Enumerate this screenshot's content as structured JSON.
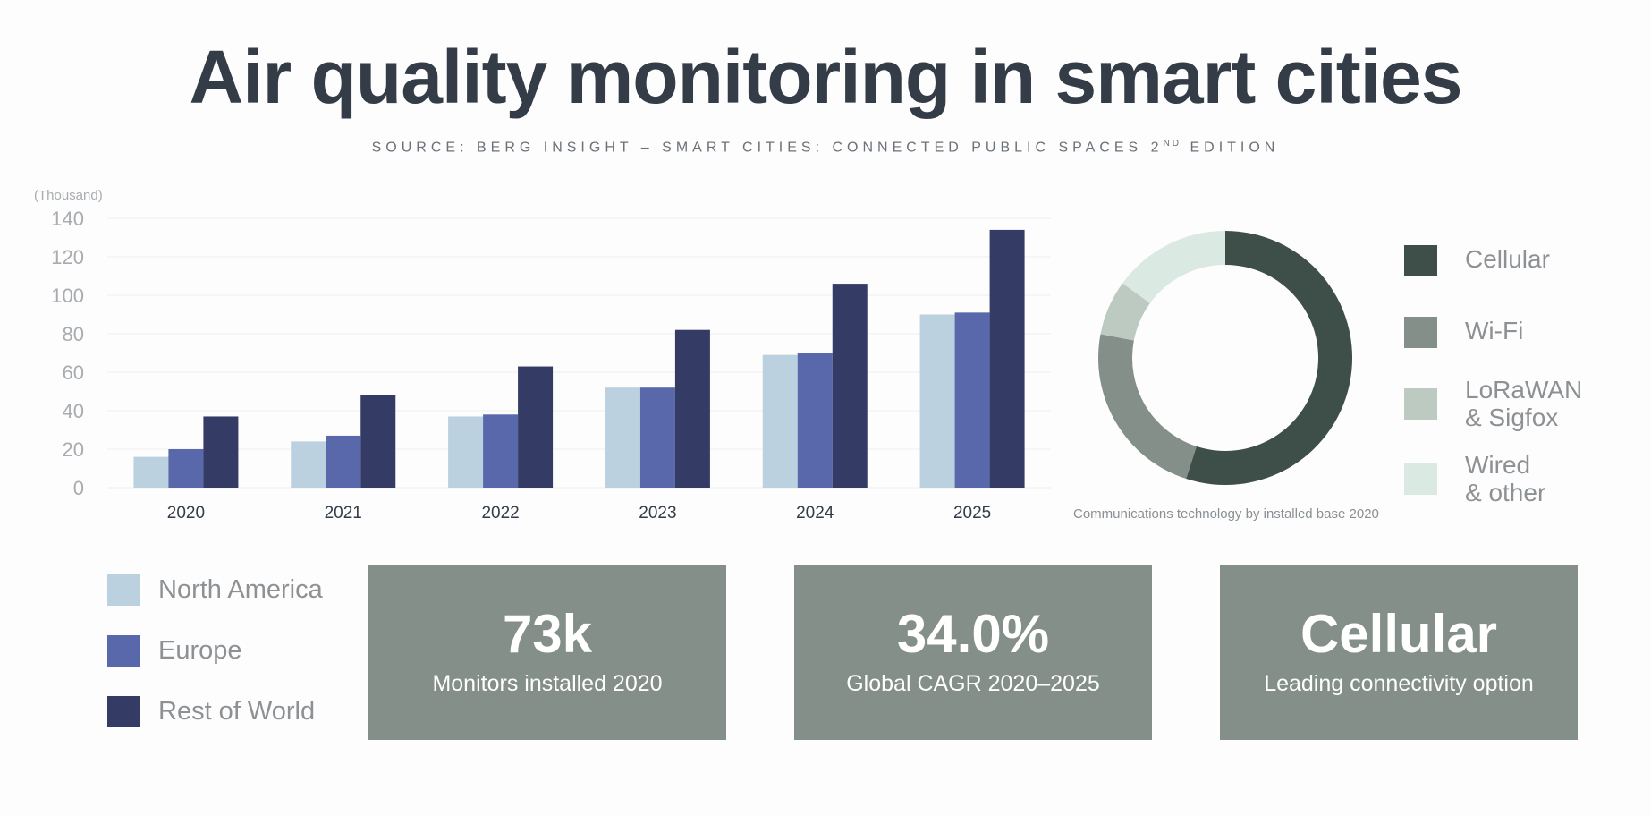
{
  "header": {
    "title": "Air quality monitoring in smart cities",
    "subtitle": "SOURCE: BERG INSIGHT – SMART CITIES: CONNECTED PUBLIC SPACES 2",
    "subtitle_sup": "ND",
    "subtitle_end": " EDITION"
  },
  "chart_data": [
    {
      "type": "bar",
      "title": "",
      "unit_label": "(Thousand)",
      "categories": [
        "2020",
        "2021",
        "2022",
        "2023",
        "2024",
        "2025"
      ],
      "series": [
        {
          "name": "North America",
          "color": "#bcd1df",
          "values": [
            16,
            24,
            37,
            52,
            69,
            90
          ]
        },
        {
          "name": "Europe",
          "color": "#5968ab",
          "values": [
            20,
            27,
            38,
            52,
            70,
            91
          ]
        },
        {
          "name": "Rest of World",
          "color": "#343c66",
          "values": [
            37,
            48,
            63,
            82,
            106,
            134
          ]
        }
      ],
      "ylim": [
        0,
        140
      ],
      "yticks": [
        0,
        20,
        40,
        60,
        80,
        100,
        120,
        140
      ],
      "grid": true,
      "legend": "bottom-left"
    },
    {
      "type": "pie",
      "variant": "donut",
      "caption": "Communications technology by installed base 2020",
      "slices": [
        {
          "name": "Cellular",
          "color": "#3e4e49",
          "value": 55
        },
        {
          "name": "Wi-Fi",
          "color": "#838f88",
          "value": 23
        },
        {
          "name": "LoRaWAN\n& Sigfox",
          "color": "#bccac2",
          "value": 7
        },
        {
          "name": "Wired\n& other",
          "color": "#dbe9e3",
          "value": 15
        }
      ],
      "legend": "right"
    }
  ],
  "kpis": [
    {
      "value": "73k",
      "label": "Monitors installed 2020"
    },
    {
      "value": "34.0%",
      "label": "Global CAGR 2020–2025"
    },
    {
      "value": "Cellular",
      "label": "Leading connectivity option"
    }
  ],
  "colors": {
    "title": "#333c47",
    "axis_text": "#a8acb0",
    "grid": "#eeeeee",
    "kpi_bg": "#838f88"
  }
}
